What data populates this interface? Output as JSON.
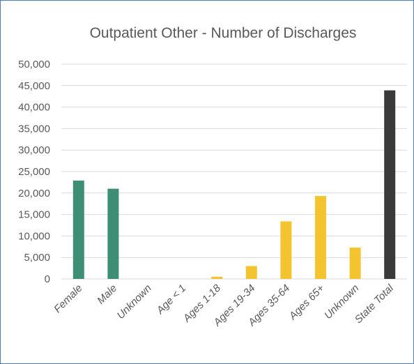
{
  "chart_data": {
    "type": "bar",
    "title": "Outpatient Other - Number of Discharges",
    "xlabel": "",
    "ylabel": "",
    "ylim": [
      0,
      50000
    ],
    "y_ticks": [
      "0",
      "5,000",
      "10,000",
      "15,000",
      "20,000",
      "25,000",
      "30,000",
      "35,000",
      "40,000",
      "45,000",
      "50,000"
    ],
    "grid": true,
    "legend": "none",
    "categories": [
      "Female",
      "Male",
      "Unknown",
      "Age < 1",
      "Ages 1-18",
      "Ages 19-34",
      "Ages 35-64",
      "Ages 65+",
      "Unknown",
      "State Total"
    ],
    "values": [
      22900,
      21000,
      0,
      0,
      500,
      3000,
      13400,
      19300,
      7300,
      43900
    ],
    "colors": [
      "#3e8e75",
      "#3e8e75",
      "#3e8e75",
      "#f4c430",
      "#f4c430",
      "#f4c430",
      "#f4c430",
      "#f4c430",
      "#f4c430",
      "#3a3a3a"
    ]
  }
}
